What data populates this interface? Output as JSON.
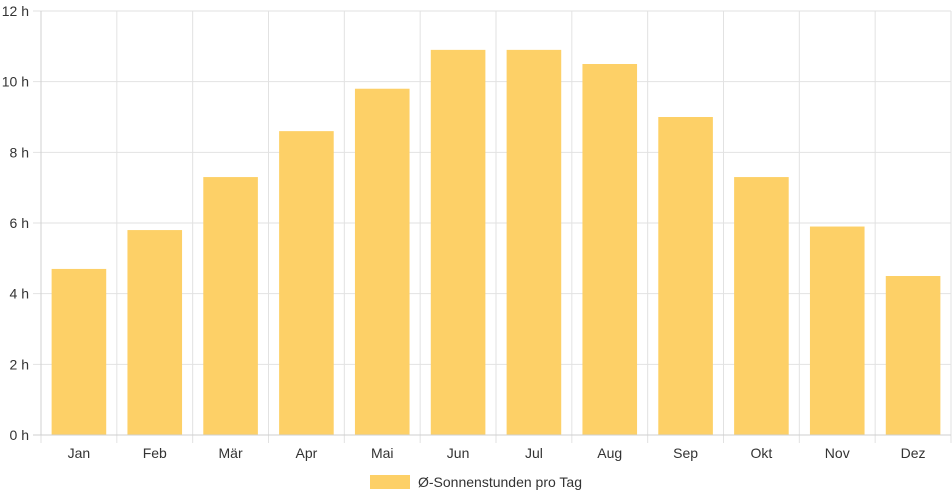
{
  "chart_data": {
    "type": "bar",
    "categories": [
      "Jan",
      "Feb",
      "Mär",
      "Apr",
      "Mai",
      "Jun",
      "Jul",
      "Aug",
      "Sep",
      "Okt",
      "Nov",
      "Dez"
    ],
    "series": [
      {
        "name": "Ø-Sonnenstunden pro Tag",
        "values": [
          4.7,
          5.8,
          7.3,
          8.6,
          9.8,
          10.9,
          10.9,
          10.5,
          9.0,
          7.3,
          5.9,
          4.5
        ],
        "color": "#fdd067"
      }
    ],
    "y_ticks": [
      "0 h",
      "2 h",
      "4 h",
      "6 h",
      "8 h",
      "10 h",
      "12 h"
    ],
    "ylim": [
      0,
      12
    ],
    "grid": true,
    "legend_position": "bottom"
  }
}
